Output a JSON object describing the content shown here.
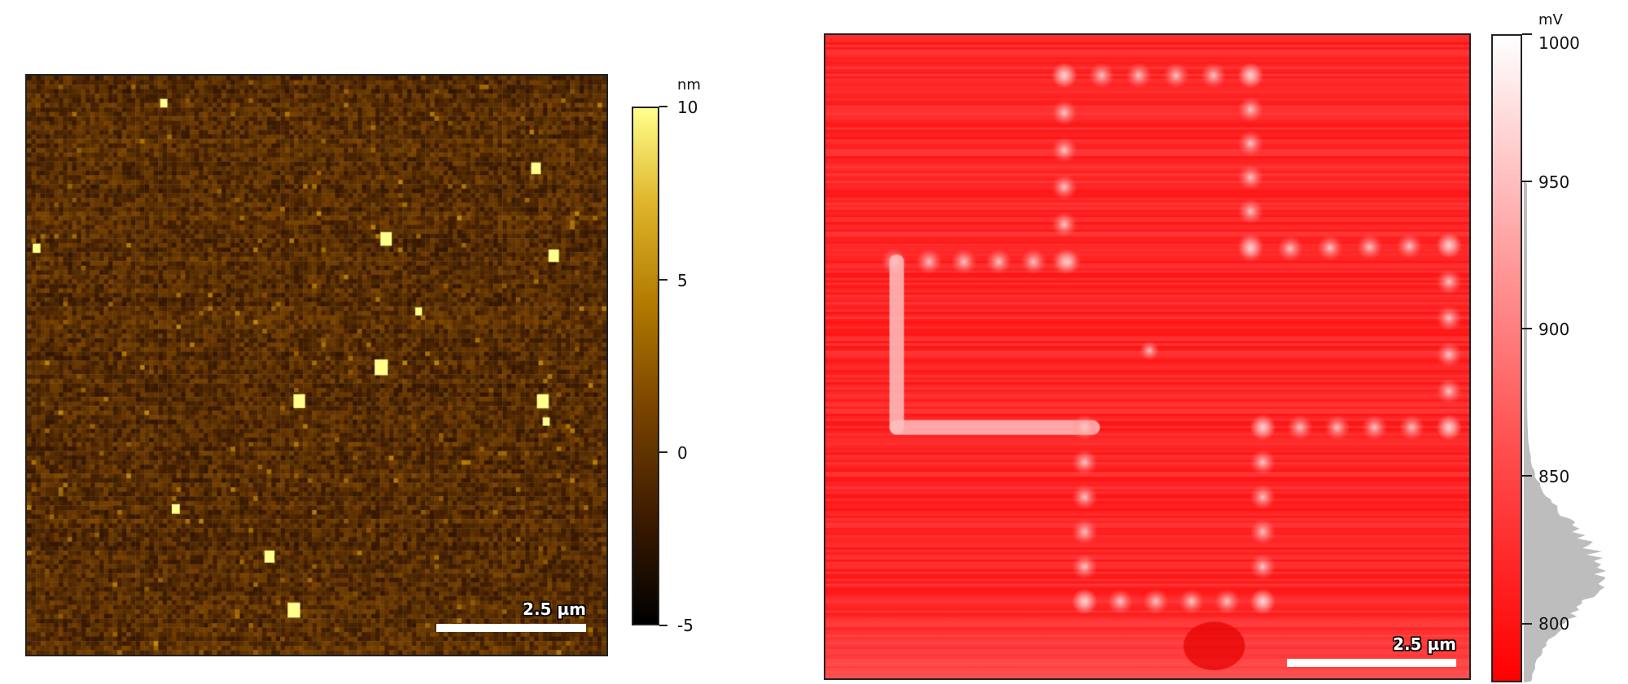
{
  "left_panel": {
    "scale_bar_label": "2.5 µm",
    "colorbar": {
      "unit": "nm",
      "ticks": [
        "10",
        "5",
        "0",
        "-5"
      ],
      "tick_values": [
        10,
        5,
        0,
        -5
      ],
      "range": [
        -5,
        10
      ],
      "colors": [
        "#000000",
        "#3b1a00",
        "#7a4400",
        "#b27a00",
        "#e0b62c",
        "#ffff8c"
      ]
    }
  },
  "right_panel": {
    "scale_bar_label": "2.5 µm",
    "colorbar": {
      "unit": "mV",
      "ticks": [
        "1000",
        "950",
        "900",
        "850",
        "800"
      ],
      "tick_values": [
        1000,
        950,
        900,
        850,
        800
      ],
      "range": [
        780,
        1000
      ],
      "colors": [
        "#ff0000",
        "#ffffff"
      ],
      "histogram_color": "#bdbdbd"
    }
  }
}
